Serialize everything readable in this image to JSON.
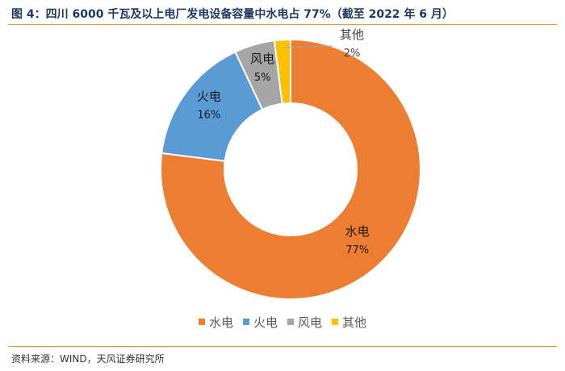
{
  "header": {
    "title": "图 4：四川 6000 千瓦及以上电厂发电设备容量中水电占 77%（截至 2022 年 6 月）"
  },
  "footer": {
    "source": "资料来源：WIND，天风证券研究所"
  },
  "chart_data": {
    "type": "pie",
    "donut": true,
    "categories": [
      "水电",
      "火电",
      "风电",
      "其他"
    ],
    "values": [
      77,
      16,
      5,
      2
    ],
    "value_labels": [
      "77%",
      "16%",
      "5%",
      "2%"
    ],
    "colors": [
      "#ED7D31",
      "#5B9BD5",
      "#A5A5A5",
      "#FFC000"
    ],
    "legend_position": "bottom"
  }
}
